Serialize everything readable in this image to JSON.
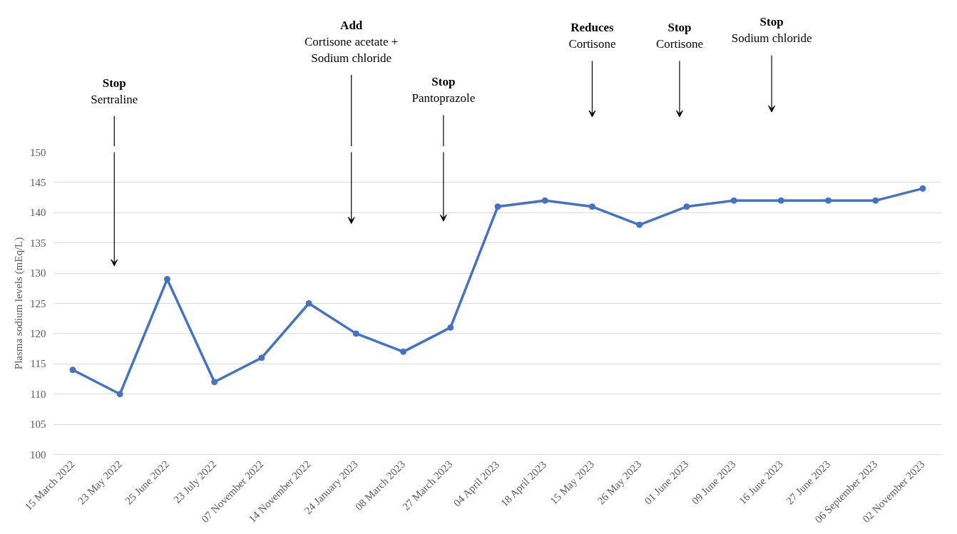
{
  "chart_data": {
    "type": "line",
    "ylabel": "Plasma sodium levels (mEq/L)",
    "categories": [
      "15 March 2022",
      "23 May 2022",
      "25 June 2022",
      "23 July 2022",
      "07 November 2022",
      "14 November 2022",
      "24 January 2023",
      "08 March 2023",
      "27 March 2023",
      "04 April 2023",
      "18 April 2023",
      "15 May 2023",
      "26 May 2023",
      "01 June 2023",
      "09 June 2023",
      "16 June 2023",
      "27 June 2023",
      "06 September 2023",
      "02 November 2023"
    ],
    "series": [
      {
        "color": "#4472c4",
        "values": [
          114,
          110,
          129,
          112,
          116,
          125,
          120,
          117,
          121,
          141,
          142,
          141,
          138,
          141,
          142,
          142,
          142,
          142,
          144
        ]
      }
    ],
    "ylim": [
      100,
      150
    ],
    "yticks": [
      100,
      105,
      110,
      115,
      120,
      125,
      130,
      135,
      140,
      145,
      150
    ],
    "grid": "y",
    "marker": "circle",
    "line_style": "solid",
    "annotations": [
      "Stop\nSertraline",
      "Add\nCortisone acetate +\nSodium chloride",
      "Stop\nPantoprazole",
      "Reduces\nCortisone",
      "Stop\nCortisone",
      "Stop\nSodium chloride"
    ]
  }
}
